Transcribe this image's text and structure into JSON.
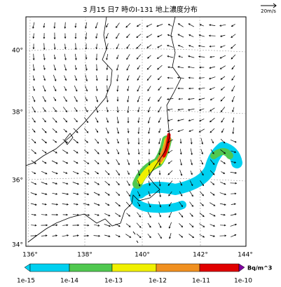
{
  "map": {
    "title": "3 月15 日7 時のI-131 地上濃度分布",
    "wind_scale": "20m/s",
    "lat_labels": [
      "40°",
      "38°",
      "36°",
      "34°"
    ],
    "lon_labels": [
      "136°",
      "138°",
      "140°",
      "142°",
      "144°"
    ],
    "colorbar": {
      "labels": [
        "1e-15",
        "1e-14",
        "1e-13",
        "1e-12",
        "1e-11",
        "1e-10"
      ],
      "unit": "Bq/m^3"
    }
  }
}
